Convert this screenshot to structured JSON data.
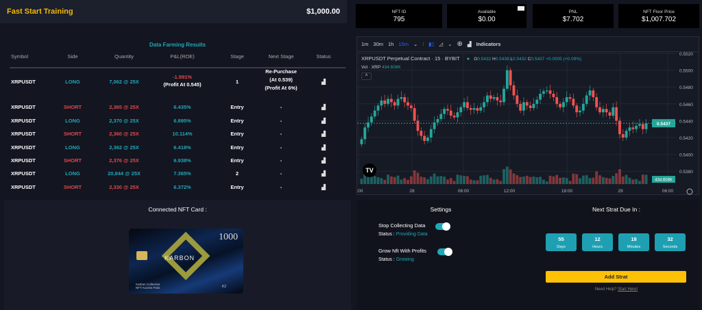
{
  "header": {
    "title": "Fast Start Training",
    "balance": "$1,000.00"
  },
  "stats": [
    {
      "label": "NFT ID",
      "value": "795"
    },
    {
      "label": "Available",
      "value": "$0.00",
      "icon": "card-icon"
    },
    {
      "label": "PNL",
      "value": "$7.702"
    },
    {
      "label": "NFT Floor Price",
      "value": "$1,007.702"
    }
  ],
  "table": {
    "title": "Data Farming Results",
    "columns": [
      "Symbol",
      "Side",
      "Quantity",
      "P&L(ROE)",
      "Stage",
      "Next Stage",
      "Status"
    ],
    "rows": [
      {
        "symbol": "XRPUSDT",
        "side": "LONG",
        "qty": "7,062 @ 25X",
        "pnl": "-1.991%",
        "pnl_note": "(Profit At 0.545)",
        "stage": "1",
        "next": "Re-Purchase",
        "next2": "(At 0.539)",
        "next3": "(Profit At 6%)"
      },
      {
        "symbol": "XRPUSDT",
        "side": "SHORT",
        "qty": "2,365 @ 25X",
        "pnl": "6.435%",
        "stage": "Entry",
        "next": "-"
      },
      {
        "symbol": "XRPUSDT",
        "side": "LONG",
        "qty": "2,370 @ 25X",
        "pnl": "6.895%",
        "stage": "Entry",
        "next": "-"
      },
      {
        "symbol": "XRPUSDT",
        "side": "SHORT",
        "qty": "2,360 @ 25X",
        "pnl": "10.114%",
        "stage": "Entry",
        "next": "-"
      },
      {
        "symbol": "XRPUSDT",
        "side": "LONG",
        "qty": "2,362 @ 25X",
        "pnl": "6.418%",
        "stage": "Entry",
        "next": "-"
      },
      {
        "symbol": "XRPUSDT",
        "side": "SHORT",
        "qty": "2,376 @ 25X",
        "pnl": "6.938%",
        "stage": "Entry",
        "next": "-"
      },
      {
        "symbol": "XRPUSDT",
        "side": "LONG",
        "qty": "20,844 @ 25X",
        "pnl": "7.365%",
        "stage": "2",
        "next": "-"
      },
      {
        "symbol": "XRPUSDT",
        "side": "SHORT",
        "qty": "2,330 @ 25X",
        "pnl": "6.372%",
        "stage": "Entry",
        "next": "-"
      }
    ]
  },
  "chart": {
    "intervals": [
      "1m",
      "30m",
      "1h",
      "15m"
    ],
    "selected_interval": "15m",
    "indicators_label": "Indicators",
    "title": "XRPUSDT Perpetual Contract · 15 · BYBIT",
    "o": "0.5432",
    "h": "0.5438",
    "l": "0.5432",
    "c": "0.5437",
    "change": "+0.0005 (+0.09%)",
    "vol_label": "Vol · XRP",
    "vol_value": "434.608K",
    "last_price": "0.5437",
    "y_ticks": [
      "0.5520",
      "0.5500",
      "0.5480",
      "0.5460",
      "0.5440",
      "0.5420",
      "0.5400",
      "0.5380"
    ],
    "x_ticks": [
      "0:00",
      "28",
      "06:00",
      "12:00",
      "18:00",
      "29",
      "06:00"
    ],
    "closes": [
      0.5418,
      0.5432,
      0.5438,
      0.5445,
      0.5452,
      0.5458,
      0.5464,
      0.546,
      0.5466,
      0.5462,
      0.5458,
      0.5466,
      0.5468,
      0.5462,
      0.5458,
      0.5455,
      0.544,
      0.5428,
      0.5422,
      0.5416,
      0.542,
      0.543,
      0.5438,
      0.5442,
      0.5448,
      0.5454,
      0.5452,
      0.5446,
      0.5444,
      0.545,
      0.5456,
      0.5462,
      0.5455,
      0.5453,
      0.5455,
      0.5452,
      0.5456,
      0.5462,
      0.547,
      0.5466,
      0.5468,
      0.5464,
      0.5462,
      0.5478,
      0.55,
      0.5482,
      0.547,
      0.546,
      0.5452,
      0.5462,
      0.5458,
      0.5455,
      0.546,
      0.5465,
      0.5472,
      0.5475,
      0.5476,
      0.5472,
      0.5468,
      0.546,
      0.5456,
      0.5462,
      0.5468,
      0.5466,
      0.5458,
      0.545,
      0.5452,
      0.546,
      0.547,
      0.5476,
      0.5468,
      0.5456,
      0.545,
      0.5454,
      0.545,
      0.5446,
      0.5456,
      0.544,
      0.5424,
      0.542,
      0.5428,
      0.5432,
      0.543,
      0.5434,
      0.5436,
      0.543,
      0.5437
    ]
  },
  "nft": {
    "title": "Connected NFT Card :",
    "card_value": "1000",
    "brand": "KARBON",
    "caption1": "Karbon Collective",
    "caption2": "NFT Access Pass",
    "code": "K2"
  },
  "settings": {
    "title": "Settings",
    "items": [
      {
        "label": "Stop Collecting Data",
        "status_label": "Status :",
        "status": "Providing Data",
        "on": true
      },
      {
        "label": "Grow Nft With Profits",
        "status_label": "Status :",
        "status": "Growing",
        "on": true
      }
    ]
  },
  "timer": {
    "title": "Next Strat Due In :",
    "units": [
      {
        "value": "55",
        "label": "Days"
      },
      {
        "value": "12",
        "label": "Hours"
      },
      {
        "value": "18",
        "label": "Minutes"
      },
      {
        "value": "32",
        "label": "Seconds"
      }
    ],
    "button": "Add Strat",
    "help": "Need Help?",
    "help_link": "Start Here!"
  },
  "colors": {
    "accent": "#1fa8b8",
    "gold": "#f5b800",
    "up": "#26a69a",
    "down": "#ef5350"
  }
}
